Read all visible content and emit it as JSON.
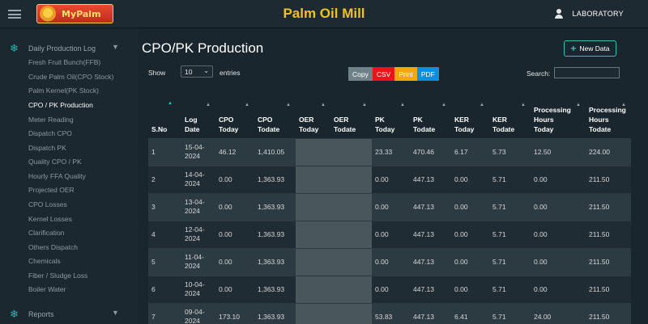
{
  "header": {
    "logo_text": "MyPalm",
    "app_title": "Palm Oil Mill",
    "user_label": "LABORATORY"
  },
  "sidebar": {
    "group1_label": "Daily Production Log",
    "items": [
      "Fresh Fruit Bunch(FFB)",
      "Crude Palm Oil(CPO Stock)",
      "Palm Kernel(PK Stock)",
      "CPO / PK Production",
      "Meter Reading",
      "Dispatch CPO",
      "Dispatch PK",
      "Quality CPO / PK",
      "Hourly FFA Quality",
      "Projected OER",
      "CPO Losses",
      "Kernel Losses",
      "Clarification",
      "Others Dispatch",
      "Chemicals",
      "Fiber / Sludge Loss",
      "Boiler Water"
    ],
    "group2_label": "Reports"
  },
  "main": {
    "page_title": "CPO/PK Production",
    "new_button_label": "New Data",
    "show_label": "Show",
    "entries_value": "10",
    "entries_label": "entries",
    "export_buttons": [
      "Copy",
      "CSV",
      "Print",
      "PDF"
    ],
    "search_label": "Search:"
  },
  "table": {
    "headers": [
      [
        "S.No",
        ""
      ],
      [
        "Log",
        "Date"
      ],
      [
        "CPO",
        "Today"
      ],
      [
        "CPO",
        "Todate"
      ],
      [
        "OER",
        "Today"
      ],
      [
        "OER",
        "Todate"
      ],
      [
        "PK",
        "Today"
      ],
      [
        "PK",
        "Todate"
      ],
      [
        "KER",
        "Today"
      ],
      [
        "KER",
        "Todate"
      ],
      [
        "Processing",
        "Hours",
        "Today"
      ],
      [
        "Processing",
        "Hours",
        "Todate"
      ]
    ],
    "rows": [
      [
        "1",
        "15-04-2024",
        "46.12",
        "1,410.05",
        "",
        "",
        "23.33",
        "470.46",
        "6.17",
        "5.73",
        "12.50",
        "224.00"
      ],
      [
        "2",
        "14-04-2024",
        "0.00",
        "1,363.93",
        "",
        "",
        "0.00",
        "447.13",
        "0.00",
        "5.71",
        "0.00",
        "211.50"
      ],
      [
        "3",
        "13-04-2024",
        "0.00",
        "1,363.93",
        "",
        "",
        "0.00",
        "447.13",
        "0.00",
        "5.71",
        "0.00",
        "211.50"
      ],
      [
        "4",
        "12-04-2024",
        "0.00",
        "1,363.93",
        "",
        "",
        "0.00",
        "447.13",
        "0.00",
        "5.71",
        "0.00",
        "211.50"
      ],
      [
        "5",
        "11-04-2024",
        "0.00",
        "1,363.93",
        "",
        "",
        "0.00",
        "447.13",
        "0.00",
        "5.71",
        "0.00",
        "211.50"
      ],
      [
        "6",
        "10-04-2024",
        "0.00",
        "1,363.93",
        "",
        "",
        "0.00",
        "447.13",
        "0.00",
        "5.71",
        "0.00",
        "211.50"
      ],
      [
        "7",
        "09-04-2024",
        "173.10",
        "1,363.93",
        "",
        "",
        "53.83",
        "447.13",
        "6.41",
        "5.71",
        "24.00",
        "211.50"
      ]
    ]
  }
}
